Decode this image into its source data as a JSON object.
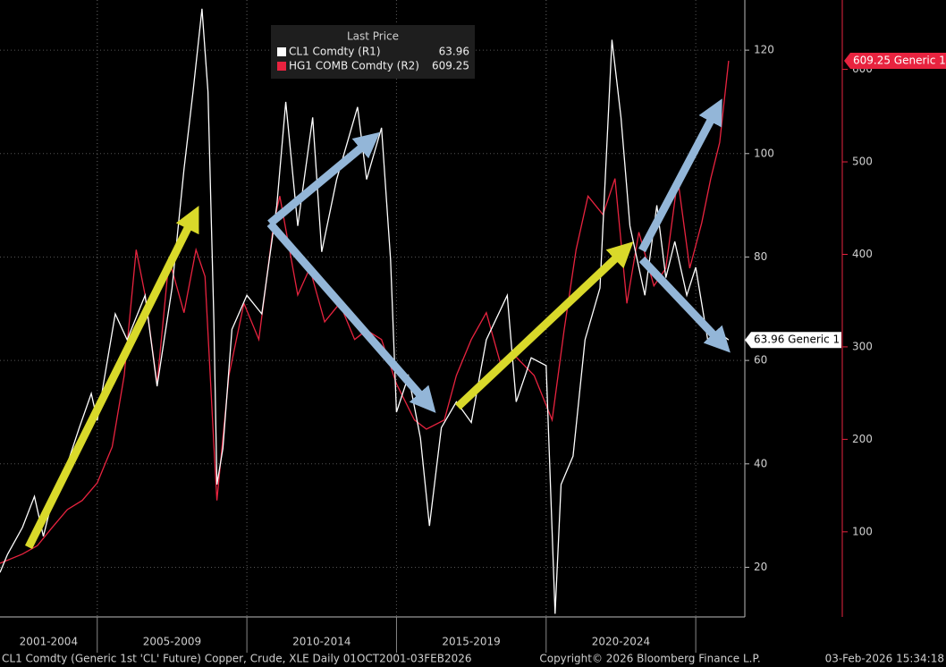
{
  "chart_data": {
    "type": "line",
    "legend_title": "Last Price",
    "footer_left": "CL1 Comdty (Generic 1st 'CL' Future) Copper, Crude, XLE Daily 01OCT2001-03FEB2026",
    "footer_center": "Copyright© 2026 Bloomberg Finance L.P.",
    "footer_right": "03-Feb-2026 15:34:18",
    "xlim": [
      2001.75,
      2026.55
    ],
    "periods": [
      {
        "label": "2001-2004",
        "start": 2001.75,
        "end": 2005
      },
      {
        "label": "2005-2009",
        "start": 2005,
        "end": 2010
      },
      {
        "label": "2010-2014",
        "start": 2010,
        "end": 2015
      },
      {
        "label": "2015-2019",
        "start": 2015,
        "end": 2020
      },
      {
        "label": "2020-2024",
        "start": 2020,
        "end": 2025
      }
    ],
    "ylim": [
      10.4,
      129.7
    ],
    "yticks": [
      20,
      40,
      60,
      80,
      100,
      120
    ],
    "y2lim": [
      8,
      675
    ],
    "y2ticks": [
      100,
      200,
      300,
      400,
      500,
      600
    ],
    "grid": true,
    "series": [
      {
        "name": "CL1 Comdty  (R1)",
        "color": "#ffffff",
        "last_price": 63.96,
        "tag": "63.96 Generic 1",
        "x": [
          2001.75,
          2002.0,
          2002.5,
          2002.9,
          2003.2,
          2003.5,
          2004.0,
          2004.4,
          2004.8,
          2005.0,
          2005.6,
          2006.0,
          2006.6,
          2007.0,
          2007.5,
          2007.9,
          2008.2,
          2008.5,
          2008.7,
          2008.9,
          2009.0,
          2009.2,
          2009.5,
          2010.0,
          2010.5,
          2011.0,
          2011.3,
          2011.7,
          2012.2,
          2012.5,
          2013.0,
          2013.7,
          2014.0,
          2014.5,
          2014.8,
          2015.0,
          2015.4,
          2015.8,
          2016.1,
          2016.5,
          2017.0,
          2017.5,
          2018.0,
          2018.7,
          2019.0,
          2019.5,
          2020.0,
          2020.3,
          2020.5,
          2020.9,
          2021.3,
          2021.8,
          2022.2,
          2022.5,
          2022.8,
          2023.3,
          2023.7,
          2024.0,
          2024.3,
          2024.7,
          2025.0,
          2025.4,
          2025.7,
          2026.1
        ],
        "values": [
          19,
          22.5,
          27.7,
          33.7,
          26,
          33,
          40,
          47,
          53.6,
          48.4,
          69,
          64,
          72.6,
          55,
          74,
          97,
          112,
          128,
          112,
          67,
          36,
          43,
          66,
          72.6,
          69,
          90,
          110,
          86,
          107,
          81,
          95,
          109,
          95,
          105,
          79.5,
          50,
          57,
          45,
          28,
          47,
          52,
          48,
          64,
          72.6,
          52,
          60.5,
          59,
          11,
          36,
          41.5,
          64,
          74,
          122,
          107,
          86,
          72.6,
          90,
          76,
          83,
          72.6,
          78,
          64,
          65.7,
          63.96
        ]
      },
      {
        "name": "HG1 COMB Comdty  (R2)",
        "color": "#e8233f",
        "axis": "y2",
        "last_price": 609.25,
        "tag": "609.25 Generic 1",
        "x": [
          2001.75,
          2002.5,
          2003.0,
          2003.5,
          2004.0,
          2004.5,
          2005.0,
          2005.5,
          2005.9,
          2006.3,
          2006.6,
          2007.0,
          2007.4,
          2007.9,
          2008.3,
          2008.6,
          2008.9,
          2009.0,
          2009.4,
          2009.9,
          2010.4,
          2010.9,
          2011.1,
          2011.7,
          2012.1,
          2012.6,
          2013.1,
          2013.6,
          2014.0,
          2014.5,
          2015.0,
          2015.6,
          2016.0,
          2016.6,
          2017.0,
          2017.5,
          2018.0,
          2018.5,
          2019.0,
          2019.6,
          2020.2,
          2020.6,
          2021.0,
          2021.4,
          2021.9,
          2022.3,
          2022.7,
          2023.1,
          2023.6,
          2024.0,
          2024.4,
          2024.8,
          2025.2,
          2025.5,
          2025.8,
          2026.1
        ],
        "values": [
          66,
          76,
          85,
          105,
          124,
          134,
          153,
          192,
          269,
          405,
          356,
          260,
          395,
          337,
          405,
          376,
          192,
          134,
          269,
          347,
          308,
          434,
          463,
          356,
          385,
          327,
          347,
          308,
          318,
          308,
          260,
          221,
          211,
          221,
          269,
          308,
          337,
          279,
          289,
          269,
          221,
          318,
          405,
          463,
          443,
          482,
          347,
          424,
          366,
          385,
          482,
          385,
          434,
          482,
          521,
          609.25
        ]
      }
    ]
  }
}
